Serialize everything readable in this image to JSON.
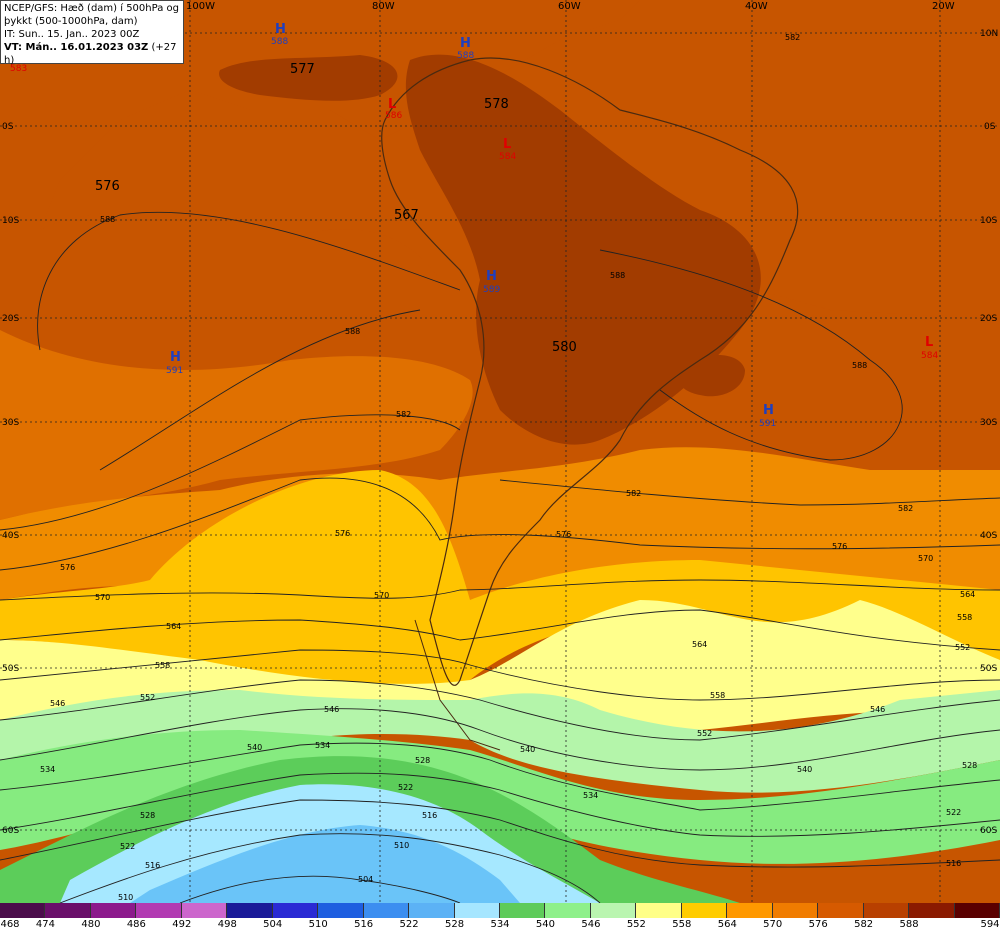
{
  "header": {
    "line1": "NCEP/GFS: Hæð (dam) í 500hPa og",
    "line2": "þykkt (500-1000hPa, dam)",
    "line3": "IT: Sun.. 15. Jan.. 2023 00Z",
    "line4": "VT: Mán.. 16.01.2023 03Z",
    "line4_suffix": "(+27 h)",
    "corner_value": "583"
  },
  "axes": {
    "lon_labels": [
      "100W",
      "80W",
      "60W",
      "40W",
      "20W"
    ],
    "lat_labels": [
      "10N",
      "0S",
      "10S",
      "20S",
      "30S",
      "40S",
      "50S",
      "60S"
    ]
  },
  "centers": [
    {
      "type": "H",
      "value": "588",
      "color": "#1f3fbf"
    },
    {
      "type": "H",
      "value": "588",
      "color": "#1f3fbf"
    },
    {
      "type": "L",
      "value": "586",
      "color": "#e00000"
    },
    {
      "type": "L",
      "value": "584",
      "color": "#e00000"
    },
    {
      "type": "H",
      "value": "589",
      "color": "#1f3fbf"
    },
    {
      "type": "H",
      "value": "591",
      "color": "#1f3fbf"
    },
    {
      "type": "H",
      "value": "591",
      "color": "#1f3fbf"
    },
    {
      "type": "L",
      "value": "584",
      "color": "#e00000"
    }
  ],
  "big_labels": [
    "577",
    "578",
    "576",
    "567",
    "580"
  ],
  "contour_labels": [
    "582",
    "588",
    "588",
    "588",
    "588",
    "582",
    "582",
    "582",
    "576",
    "576",
    "576",
    "576",
    "570",
    "570",
    "570",
    "564",
    "564",
    "564",
    "558",
    "558",
    "558",
    "552",
    "552",
    "552",
    "546",
    "546",
    "546",
    "540",
    "540",
    "540",
    "534",
    "534",
    "534",
    "528",
    "528",
    "528",
    "522",
    "522",
    "522",
    "516",
    "516",
    "516",
    "510",
    "510",
    "504"
  ],
  "legend": {
    "values": [
      "468",
      "474",
      "480",
      "486",
      "492",
      "498",
      "504",
      "510",
      "516",
      "522",
      "528",
      "534",
      "540",
      "546",
      "552",
      "558",
      "564",
      "570",
      "576",
      "582",
      "588",
      "594"
    ],
    "colors": [
      "#4b0d4b",
      "#6a0f6a",
      "#8c1a8c",
      "#b23ab2",
      "#cc66cc",
      "#1a1a99",
      "#2a2ad4",
      "#1e5ee0",
      "#3c8ef0",
      "#5cb2f5",
      "#a6e6ff",
      "#5ecb5a",
      "#8ef08a",
      "#baf5b0",
      "#ffff88",
      "#ffcc00",
      "#ff9900",
      "#f07c00",
      "#d65a00",
      "#b84000",
      "#8a1a00",
      "#5a0000"
    ]
  }
}
